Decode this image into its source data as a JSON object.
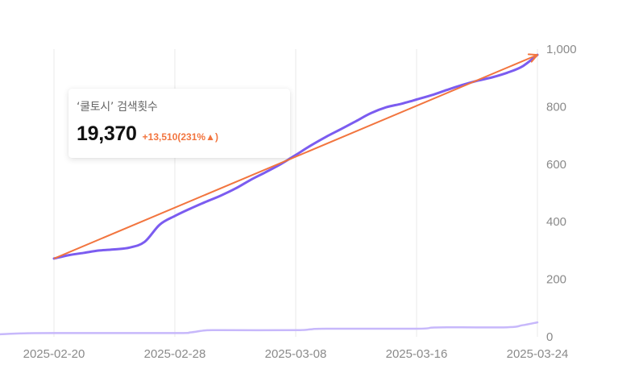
{
  "tooltip": {
    "title": "‘쿨토시’ 검색횟수",
    "value": "19,370",
    "change": "+13,510(231%▲)"
  },
  "colors": {
    "main_series": "#7b5cf0",
    "secondary_series": "#c7b8fb",
    "trend_arrow": "#f2753f",
    "change_text": "#f2753f",
    "grid": "#e9e9e9"
  },
  "chart_data": {
    "type": "line",
    "x_labels": [
      "2025-02-20",
      "2025-02-28",
      "2025-03-08",
      "2025-03-16",
      "2025-03-24"
    ],
    "y_ticks": [
      0,
      200,
      400,
      600,
      800,
      1000
    ],
    "y_tick_labels": [
      "0",
      "200",
      "400",
      "600",
      "800",
      "1,000"
    ],
    "ylim": [
      0,
      1000
    ],
    "y_axis_position": "right",
    "grid": "vertical",
    "series": [
      {
        "role": "main",
        "x": [
          "2025-02-20",
          "2025-02-21",
          "2025-02-22",
          "2025-02-23",
          "2025-02-24",
          "2025-02-25",
          "2025-02-26",
          "2025-02-27",
          "2025-02-28",
          "2025-03-01",
          "2025-03-02",
          "2025-03-03",
          "2025-03-04",
          "2025-03-05",
          "2025-03-06",
          "2025-03-07",
          "2025-03-08",
          "2025-03-09",
          "2025-03-10",
          "2025-03-11",
          "2025-03-12",
          "2025-03-13",
          "2025-03-14",
          "2025-03-15",
          "2025-03-16",
          "2025-03-17",
          "2025-03-18",
          "2025-03-19",
          "2025-03-20",
          "2025-03-21",
          "2025-03-22",
          "2025-03-23",
          "2025-03-24"
        ],
        "values": [
          272,
          284,
          292,
          300,
          304,
          310,
          330,
          390,
          420,
          445,
          468,
          490,
          515,
          545,
          572,
          600,
          632,
          665,
          695,
          722,
          750,
          778,
          798,
          810,
          825,
          840,
          858,
          875,
          890,
          902,
          918,
          940,
          980
        ]
      },
      {
        "role": "secondary",
        "x": [
          "2025-02-16",
          "2025-02-17",
          "2025-02-18",
          "2025-02-20",
          "2025-02-28",
          "2025-03-01",
          "2025-03-02",
          "2025-03-03",
          "2025-03-08",
          "2025-03-09",
          "2025-03-10",
          "2025-03-16",
          "2025-03-17",
          "2025-03-18",
          "2025-03-22",
          "2025-03-23",
          "2025-03-24"
        ],
        "values": [
          8,
          10,
          12,
          13,
          13,
          15,
          22,
          23,
          23,
          26,
          28,
          28,
          32,
          33,
          33,
          40,
          50
        ]
      }
    ],
    "trend_arrow": {
      "from": {
        "x": "2025-02-20",
        "y": 272
      },
      "to": {
        "x": "2025-03-24",
        "y": 980
      }
    }
  }
}
